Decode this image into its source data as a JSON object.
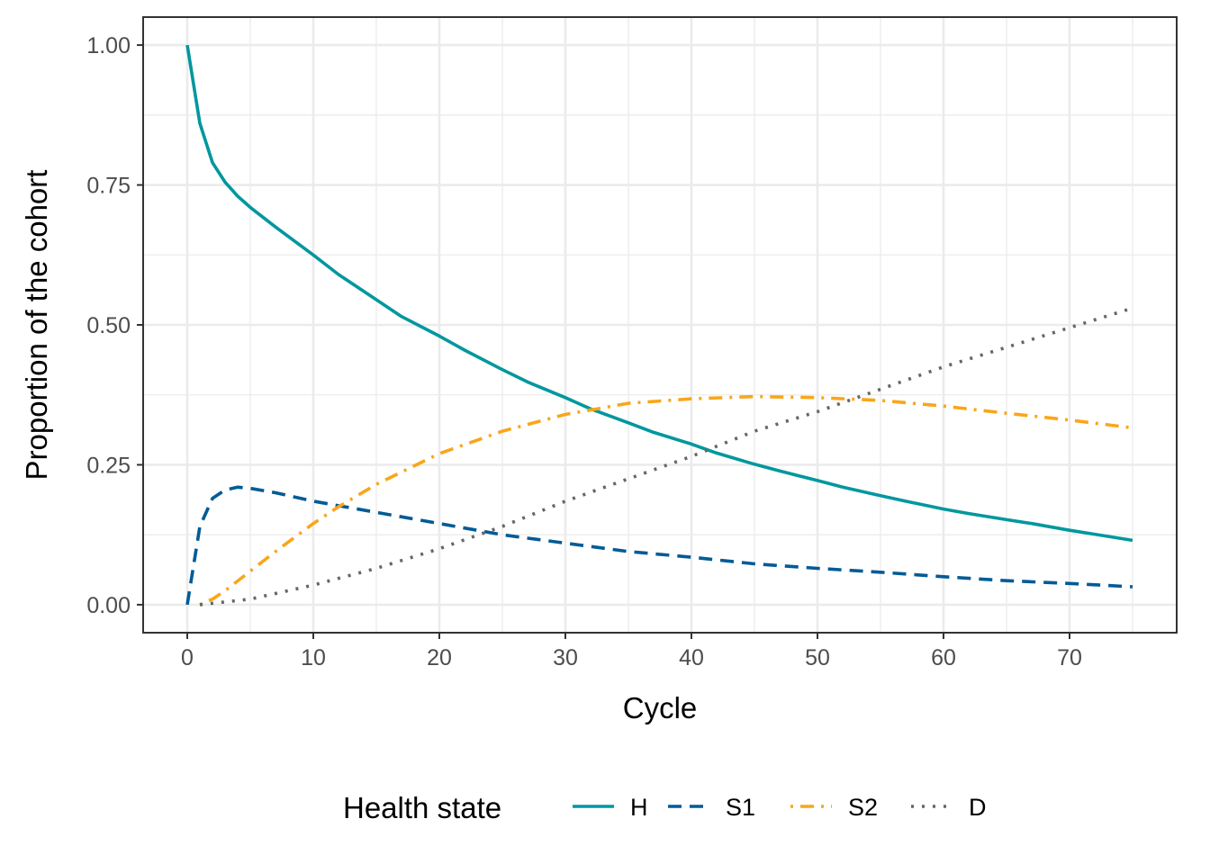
{
  "chart_data": {
    "type": "line",
    "xlabel": "Cycle",
    "ylabel": "Proportion of the cohort",
    "xlim": [
      -3.5,
      78.5
    ],
    "ylim": [
      -0.05,
      1.05
    ],
    "x_ticks": [
      0,
      10,
      20,
      30,
      40,
      50,
      60,
      70
    ],
    "x_tick_labels": [
      "0",
      "10",
      "20",
      "30",
      "40",
      "50",
      "60",
      "70"
    ],
    "y_ticks": [
      0,
      0.25,
      0.5,
      0.75,
      1
    ],
    "y_tick_labels": [
      "0.00",
      "0.25",
      "0.50",
      "0.75",
      "1.00"
    ],
    "grid": true,
    "legend": {
      "title": "Health state",
      "position": "bottom"
    },
    "series": [
      {
        "name": "H",
        "color": "#00979E",
        "dash": "solid",
        "x": [
          0,
          1,
          2,
          3,
          4,
          5,
          7,
          10,
          12,
          15,
          17,
          20,
          22,
          25,
          27,
          30,
          32,
          35,
          37,
          40,
          42,
          45,
          47,
          50,
          52,
          55,
          57,
          60,
          62,
          65,
          67,
          70,
          72,
          75
        ],
        "y": [
          1.0,
          0.86,
          0.79,
          0.755,
          0.73,
          0.71,
          0.675,
          0.625,
          0.59,
          0.545,
          0.515,
          0.48,
          0.455,
          0.42,
          0.398,
          0.37,
          0.35,
          0.325,
          0.308,
          0.287,
          0.271,
          0.251,
          0.239,
          0.222,
          0.21,
          0.195,
          0.185,
          0.171,
          0.163,
          0.152,
          0.145,
          0.133,
          0.126,
          0.115
        ]
      },
      {
        "name": "S1",
        "color": "#005B96",
        "dash": "dashed",
        "x": [
          0,
          1,
          2,
          3,
          4,
          5,
          7,
          10,
          15,
          20,
          25,
          30,
          35,
          40,
          45,
          50,
          55,
          60,
          65,
          70,
          75
        ],
        "y": [
          0.0,
          0.14,
          0.19,
          0.205,
          0.21,
          0.208,
          0.2,
          0.185,
          0.165,
          0.145,
          0.125,
          0.11,
          0.095,
          0.085,
          0.073,
          0.065,
          0.058,
          0.05,
          0.043,
          0.038,
          0.032
        ]
      },
      {
        "name": "S2",
        "color": "#F9A61A",
        "dash": "dotdash",
        "x": [
          1,
          2,
          3,
          5,
          7,
          10,
          12,
          15,
          20,
          25,
          30,
          35,
          40,
          45,
          50,
          55,
          60,
          65,
          70,
          75
        ],
        "y": [
          0.0,
          0.01,
          0.025,
          0.06,
          0.095,
          0.145,
          0.175,
          0.215,
          0.27,
          0.31,
          0.34,
          0.36,
          0.368,
          0.372,
          0.37,
          0.365,
          0.355,
          0.342,
          0.33,
          0.316
        ]
      },
      {
        "name": "D",
        "color": "#666666",
        "dash": "dotted",
        "x": [
          1,
          3,
          5,
          10,
          15,
          20,
          25,
          30,
          35,
          40,
          45,
          50,
          55,
          60,
          65,
          70,
          75
        ],
        "y": [
          0.0,
          0.005,
          0.01,
          0.035,
          0.065,
          0.1,
          0.14,
          0.185,
          0.225,
          0.265,
          0.31,
          0.345,
          0.385,
          0.425,
          0.46,
          0.495,
          0.53
        ]
      }
    ]
  }
}
